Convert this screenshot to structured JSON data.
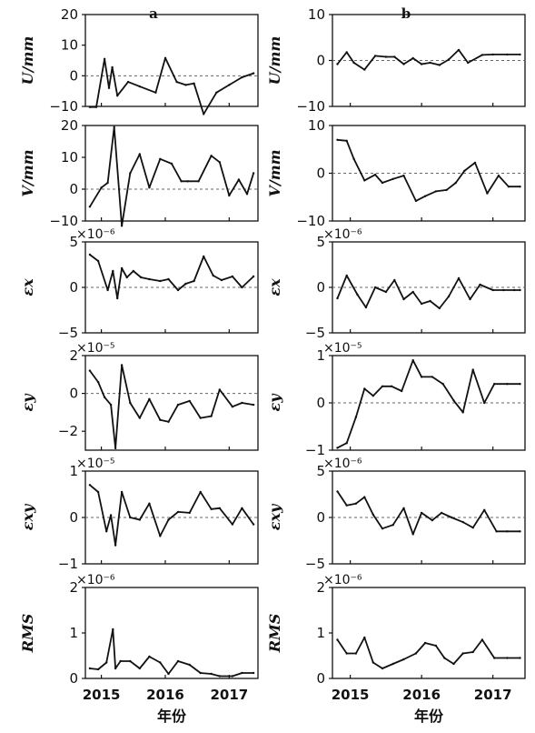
{
  "chart_data": [
    {
      "id": "a-U",
      "panel": "a",
      "type": "line",
      "panel_label": "a",
      "ylabel": "U/mm",
      "ylim": [
        -10,
        20
      ],
      "yticks": [
        "−10",
        "0",
        "10",
        "20"
      ],
      "multiplier": "",
      "x": [
        2014.82,
        2014.92,
        2015.05,
        2015.12,
        2015.17,
        2015.25,
        2015.42,
        2015.6,
        2015.85,
        2016.0,
        2016.18,
        2016.32,
        2016.45,
        2016.6,
        2016.8,
        2017.0,
        2017.2,
        2017.38
      ],
      "y": [
        -10.2,
        -10.2,
        5.5,
        -4.0,
        2.8,
        -6.5,
        -2.0,
        -3.5,
        -5.5,
        5.8,
        -2.0,
        -3.0,
        -2.5,
        -12.5,
        -5.5,
        -3.0,
        -0.5,
        0.8
      ]
    },
    {
      "id": "a-V",
      "panel": "a",
      "type": "line",
      "ylabel": "V/mm",
      "ylim": [
        -10,
        20
      ],
      "yticks": [
        "−10",
        "0",
        "10",
        "20"
      ],
      "multiplier": "",
      "x": [
        2014.82,
        2015.0,
        2015.1,
        2015.2,
        2015.32,
        2015.45,
        2015.6,
        2015.75,
        2015.92,
        2016.1,
        2016.25,
        2016.35,
        2016.52,
        2016.72,
        2016.85,
        2017.0,
        2017.15,
        2017.28,
        2017.38
      ],
      "y": [
        -5.5,
        0.5,
        2.0,
        19.5,
        -11.5,
        5.0,
        11.0,
        0.5,
        9.5,
        8.0,
        2.5,
        2.5,
        2.5,
        10.5,
        8.5,
        -2.0,
        3.0,
        -1.5,
        5.0
      ]
    },
    {
      "id": "a-ex",
      "panel": "a",
      "type": "line",
      "ylabel": "εx",
      "ylim": [
        -5,
        5
      ],
      "yticks": [
        "−5",
        "0",
        "5"
      ],
      "multiplier": "×10⁻⁶",
      "x": [
        2014.82,
        2014.95,
        2015.1,
        2015.18,
        2015.25,
        2015.32,
        2015.4,
        2015.5,
        2015.62,
        2015.75,
        2015.92,
        2016.05,
        2016.2,
        2016.32,
        2016.45,
        2016.6,
        2016.75,
        2016.88,
        2017.05,
        2017.2,
        2017.38
      ],
      "y": [
        3.6,
        2.9,
        -0.3,
        1.8,
        -1.2,
        2.1,
        1.1,
        1.8,
        1.1,
        0.9,
        0.7,
        0.9,
        -0.3,
        0.4,
        0.7,
        3.4,
        1.3,
        0.8,
        1.2,
        0.0,
        1.2
      ]
    },
    {
      "id": "a-ey",
      "panel": "a",
      "type": "line",
      "ylabel": "εy",
      "ylim": [
        -3,
        2
      ],
      "yticks": [
        "−2",
        "0",
        "2"
      ],
      "multiplier": "×10⁻⁵",
      "x": [
        2014.82,
        2014.95,
        2015.05,
        2015.15,
        2015.22,
        2015.32,
        2015.45,
        2015.6,
        2015.75,
        2015.92,
        2016.05,
        2016.2,
        2016.38,
        2016.55,
        2016.72,
        2016.85,
        2017.05,
        2017.2,
        2017.38
      ],
      "y": [
        1.2,
        0.6,
        -0.2,
        -0.6,
        -2.9,
        1.5,
        -0.5,
        -1.3,
        -0.3,
        -1.4,
        -1.5,
        -0.6,
        -0.4,
        -1.3,
        -1.2,
        0.2,
        -0.7,
        -0.5,
        -0.6
      ]
    },
    {
      "id": "a-exy",
      "panel": "a",
      "type": "line",
      "ylabel": "εxy",
      "ylim": [
        -1,
        1
      ],
      "yticks": [
        "−1",
        "0",
        "1"
      ],
      "multiplier": "×10⁻⁵",
      "x": [
        2014.82,
        2014.95,
        2015.08,
        2015.15,
        2015.22,
        2015.32,
        2015.45,
        2015.6,
        2015.75,
        2015.92,
        2016.05,
        2016.2,
        2016.38,
        2016.55,
        2016.72,
        2016.85,
        2017.05,
        2017.2,
        2017.38
      ],
      "y": [
        0.7,
        0.55,
        -0.3,
        0.05,
        -0.6,
        0.55,
        0.0,
        -0.05,
        0.3,
        -0.4,
        -0.05,
        0.12,
        0.1,
        0.55,
        0.18,
        0.2,
        -0.15,
        0.2,
        -0.15
      ]
    },
    {
      "id": "a-rms",
      "panel": "a",
      "type": "line",
      "ylabel": "RMS",
      "ylim": [
        0,
        2
      ],
      "yticks": [
        "0",
        "1",
        "2"
      ],
      "multiplier": "×10⁻⁶",
      "x": [
        2014.82,
        2014.95,
        2015.08,
        2015.18,
        2015.22,
        2015.3,
        2015.45,
        2015.6,
        2015.75,
        2015.92,
        2016.05,
        2016.2,
        2016.38,
        2016.55,
        2016.72,
        2016.85,
        2017.05,
        2017.2,
        2017.38
      ],
      "y": [
        0.22,
        0.2,
        0.35,
        1.08,
        0.22,
        0.38,
        0.38,
        0.22,
        0.48,
        0.35,
        0.1,
        0.38,
        0.3,
        0.12,
        0.1,
        0.05,
        0.05,
        0.12,
        0.12
      ]
    },
    {
      "id": "b-U",
      "panel": "b",
      "type": "line",
      "panel_label": "b",
      "ylabel": "U/mm",
      "ylim": [
        -10,
        10
      ],
      "yticks": [
        "−10",
        "0",
        "10"
      ],
      "multiplier": "",
      "x": [
        2014.82,
        2014.95,
        2015.05,
        2015.2,
        2015.35,
        2015.5,
        2015.62,
        2015.75,
        2015.88,
        2016.0,
        2016.12,
        2016.25,
        2016.38,
        2016.52,
        2016.65,
        2016.85,
        2017.0,
        2017.2,
        2017.38
      ],
      "y": [
        -0.8,
        1.8,
        -0.5,
        -2.0,
        1.0,
        0.8,
        0.8,
        -0.8,
        0.5,
        -0.8,
        -0.5,
        -1.0,
        0.2,
        2.3,
        -0.5,
        1.2,
        1.3,
        1.3,
        1.3
      ]
    },
    {
      "id": "b-V",
      "panel": "b",
      "type": "line",
      "ylabel": "V/mm",
      "ylim": [
        -10,
        10
      ],
      "yticks": [
        "−10",
        "0",
        "10"
      ],
      "multiplier": "",
      "x": [
        2014.82,
        2014.95,
        2015.05,
        2015.2,
        2015.35,
        2015.45,
        2015.6,
        2015.75,
        2015.92,
        2016.05,
        2016.2,
        2016.35,
        2016.48,
        2016.6,
        2016.75,
        2016.92,
        2017.08,
        2017.22,
        2017.38
      ],
      "y": [
        7.0,
        6.8,
        3.0,
        -1.5,
        -0.3,
        -2.0,
        -1.2,
        -0.5,
        -5.8,
        -4.8,
        -3.8,
        -3.5,
        -2.0,
        0.5,
        2.2,
        -4.2,
        -0.5,
        -2.8,
        -2.8
      ]
    },
    {
      "id": "b-ex",
      "panel": "b",
      "type": "line",
      "ylabel": "εx",
      "ylim": [
        -5,
        5
      ],
      "yticks": [
        "−5",
        "0",
        "5"
      ],
      "multiplier": "×10⁻⁶",
      "x": [
        2014.82,
        2014.95,
        2015.1,
        2015.22,
        2015.35,
        2015.5,
        2015.62,
        2015.75,
        2015.88,
        2016.0,
        2016.12,
        2016.25,
        2016.38,
        2016.52,
        2016.68,
        2016.82,
        2017.0,
        2017.15,
        2017.3,
        2017.38
      ],
      "y": [
        -1.2,
        1.3,
        -0.8,
        -2.2,
        0.0,
        -0.5,
        0.8,
        -1.3,
        -0.5,
        -1.8,
        -1.5,
        -2.3,
        -1.0,
        1.0,
        -1.3,
        0.3,
        -0.3,
        -0.3,
        -0.3,
        -0.3
      ]
    },
    {
      "id": "b-ey",
      "panel": "b",
      "type": "line",
      "ylabel": "εy",
      "ylim": [
        -1,
        1
      ],
      "yticks": [
        "−1",
        "0",
        "1"
      ],
      "multiplier": "×10⁻⁵",
      "x": [
        2014.82,
        2014.95,
        2015.08,
        2015.2,
        2015.32,
        2015.45,
        2015.58,
        2015.72,
        2015.88,
        2016.0,
        2016.15,
        2016.3,
        2016.45,
        2016.58,
        2016.72,
        2016.88,
        2017.02,
        2017.2,
        2017.38
      ],
      "y": [
        -0.95,
        -0.85,
        -0.3,
        0.3,
        0.15,
        0.35,
        0.35,
        0.25,
        0.9,
        0.55,
        0.55,
        0.4,
        0.05,
        -0.2,
        0.7,
        0.0,
        0.4,
        0.4,
        0.4
      ]
    },
    {
      "id": "b-exy",
      "panel": "b",
      "type": "line",
      "ylabel": "εxy",
      "ylim": [
        -5,
        5
      ],
      "yticks": [
        "−5",
        "0",
        "5"
      ],
      "multiplier": "×10⁻⁶",
      "x": [
        2014.82,
        2014.95,
        2015.08,
        2015.2,
        2015.32,
        2015.45,
        2015.6,
        2015.75,
        2015.88,
        2016.0,
        2016.15,
        2016.28,
        2016.42,
        2016.58,
        2016.72,
        2016.88,
        2017.05,
        2017.2,
        2017.38
      ],
      "y": [
        2.8,
        1.3,
        1.5,
        2.2,
        0.3,
        -1.2,
        -0.8,
        1.0,
        -1.8,
        0.5,
        -0.3,
        0.5,
        0.0,
        -0.5,
        -1.1,
        0.8,
        -1.5,
        -1.5,
        -1.5
      ]
    },
    {
      "id": "b-rms",
      "panel": "b",
      "type": "line",
      "ylabel": "RMS",
      "ylim": [
        0,
        2
      ],
      "yticks": [
        "0",
        "1",
        "2"
      ],
      "multiplier": "×10⁻⁶",
      "x": [
        2014.82,
        2014.95,
        2015.08,
        2015.2,
        2015.32,
        2015.45,
        2015.6,
        2015.75,
        2015.92,
        2016.05,
        2016.2,
        2016.32,
        2016.45,
        2016.58,
        2016.72,
        2016.85,
        2017.02,
        2017.2,
        2017.38
      ],
      "y": [
        0.85,
        0.55,
        0.55,
        0.9,
        0.35,
        0.22,
        0.32,
        0.42,
        0.55,
        0.78,
        0.72,
        0.45,
        0.32,
        0.55,
        0.58,
        0.85,
        0.45,
        0.45,
        0.45
      ]
    }
  ],
  "xaxis": {
    "ticks": [
      "2015",
      "2016",
      "2017"
    ],
    "title": "年份"
  }
}
